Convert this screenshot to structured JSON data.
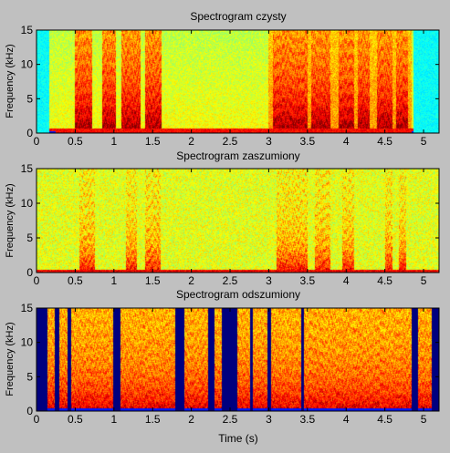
{
  "figure": {
    "background": "#c0c0c0"
  },
  "chart_data": [
    {
      "type": "heatmap",
      "title": "Spectrogram czysty",
      "xlabel": "",
      "ylabel": "Frequency (kHz)",
      "xlim": [
        0,
        5.2
      ],
      "ylim": [
        0,
        15
      ],
      "xticks": [
        "0",
        "0.5",
        "1",
        "1.5",
        "2",
        "2.5",
        "3",
        "3.5",
        "4",
        "4.5",
        "5"
      ],
      "yticks": [
        "0",
        "5",
        "10",
        "15"
      ],
      "colormap": "jet",
      "silence_regions_s": [
        [
          0,
          0.17
        ],
        [
          4.87,
          5.2
        ]
      ],
      "speech_regions_s": [
        [
          0.5,
          0.72
        ],
        [
          0.85,
          1.02
        ],
        [
          1.1,
          1.35
        ],
        [
          1.4,
          1.62
        ],
        [
          3.05,
          3.5
        ],
        [
          3.55,
          3.8
        ],
        [
          3.9,
          4.1
        ],
        [
          4.15,
          4.3
        ],
        [
          4.4,
          4.6
        ],
        [
          4.65,
          4.8
        ]
      ]
    },
    {
      "type": "heatmap",
      "title": "Spectrogram zaszumiony",
      "xlabel": "",
      "ylabel": "Frequency (kHz)",
      "xlim": [
        0,
        5.2
      ],
      "ylim": [
        0,
        15
      ],
      "xticks": [
        "0",
        "0.5",
        "1",
        "1.5",
        "2",
        "2.5",
        "3",
        "3.5",
        "4",
        "4.5",
        "5"
      ],
      "yticks": [
        "0",
        "5",
        "10",
        "15"
      ],
      "colormap": "jet",
      "speech_regions_s": [
        [
          0.55,
          0.75
        ],
        [
          1.15,
          1.3
        ],
        [
          1.4,
          1.6
        ],
        [
          3.1,
          3.5
        ],
        [
          3.6,
          3.8
        ],
        [
          3.95,
          4.1
        ],
        [
          4.5,
          4.6
        ],
        [
          4.68,
          4.78
        ]
      ]
    },
    {
      "type": "heatmap",
      "title": "Spectrogram odszumiony",
      "xlabel": "Time (s)",
      "ylabel": "Frequency (kHz)",
      "xlim": [
        0,
        5.2
      ],
      "ylim": [
        0,
        15
      ],
      "xticks": [
        "0",
        "0.5",
        "1",
        "1.5",
        "2",
        "2.5",
        "3",
        "3.5",
        "4",
        "4.5",
        "5"
      ],
      "yticks": [
        "0",
        "5",
        "10",
        "15"
      ],
      "colormap": "jet",
      "zeroed_regions_s": [
        [
          0,
          0.14
        ],
        [
          0.24,
          0.3
        ],
        [
          0.4,
          0.45
        ],
        [
          0.99,
          1.08
        ],
        [
          1.79,
          1.91
        ],
        [
          2.22,
          2.3
        ],
        [
          2.39,
          2.6
        ],
        [
          2.76,
          2.8
        ],
        [
          2.98,
          3.03
        ],
        [
          3.42,
          3.46
        ],
        [
          4.85,
          4.93
        ],
        [
          5.1,
          5.2
        ]
      ]
    }
  ]
}
